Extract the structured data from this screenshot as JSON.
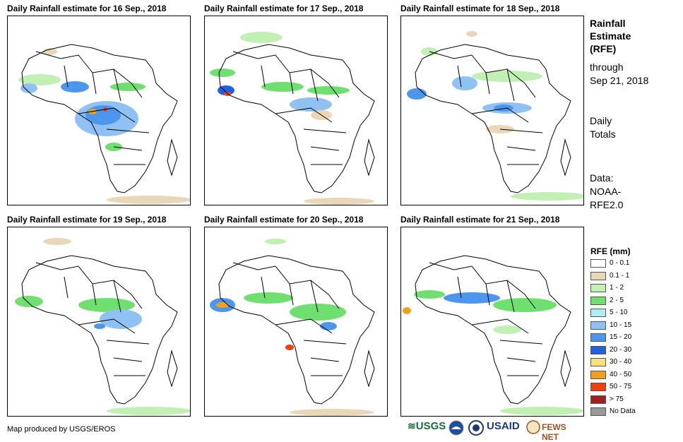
{
  "panels": [
    {
      "title": "Daily Rainfall estimate for 16 Sep., 2018"
    },
    {
      "title": "Daily Rainfall estimate for 17 Sep., 2018"
    },
    {
      "title": "Daily Rainfall estimate for 18 Sep., 2018"
    },
    {
      "title": "Daily Rainfall estimate for 19 Sep., 2018"
    },
    {
      "title": "Daily Rainfall estimate for 20 Sep., 2018"
    },
    {
      "title": "Daily Rainfall estimate for 21 Sep., 2018"
    }
  ],
  "side": {
    "title_line1": "Rainfall",
    "title_line2": "Estimate",
    "title_line3": "(RFE)",
    "through": "through",
    "date": "Sep 21, 2018",
    "daily1": "Daily",
    "daily2": "Totals",
    "data1": "Data:",
    "data2": "NOAA-",
    "data3": "RFE2.0"
  },
  "legend": {
    "title": "RFE (mm)",
    "items": [
      {
        "label": "0 - 0.1",
        "color": "#ffffff"
      },
      {
        "label": "0.1 - 1",
        "color": "#e8d8b8"
      },
      {
        "label": "1 - 2",
        "color": "#c2f0b4"
      },
      {
        "label": "2 - 5",
        "color": "#6fe06f"
      },
      {
        "label": "5 - 10",
        "color": "#aeeef2"
      },
      {
        "label": "10 - 15",
        "color": "#8fc2f2"
      },
      {
        "label": "15 - 20",
        "color": "#4d96ee"
      },
      {
        "label": "20 - 30",
        "color": "#1f5fe0"
      },
      {
        "label": "30 - 40",
        "color": "#f7e27a"
      },
      {
        "label": "40 - 50",
        "color": "#f0a020"
      },
      {
        "label": "50 - 75",
        "color": "#f04010"
      },
      {
        "label": "> 75",
        "color": "#a02020"
      },
      {
        "label": "No Data",
        "color": "#999999"
      }
    ]
  },
  "credit": "Map produced by USGS/EROS",
  "logos": {
    "usgs": "USGS",
    "usaid": "USAID",
    "fewsnet": "FEWS NET"
  }
}
